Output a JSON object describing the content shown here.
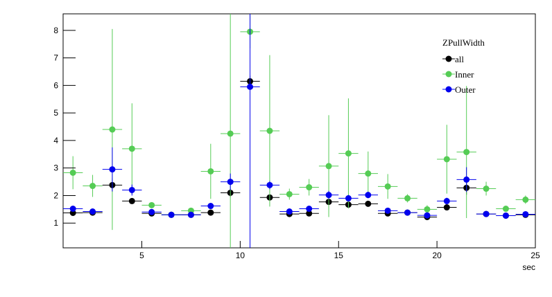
{
  "chart_data": {
    "type": "errorbar",
    "legend_title": "ZPullWidth",
    "x_label": "sec",
    "x": [
      1.5,
      2.5,
      3.5,
      4.5,
      5.5,
      6.5,
      7.5,
      8.5,
      9.5,
      10.5,
      11.5,
      12.5,
      13.5,
      14.5,
      15.5,
      16.5,
      17.5,
      18.5,
      19.5,
      20.5,
      21.5,
      22.5,
      23.5,
      24.5
    ],
    "xerr": 0.5,
    "series": [
      {
        "name": "all",
        "color": "#000000",
        "values": [
          1.37,
          1.38,
          2.38,
          1.8,
          1.35,
          1.3,
          1.3,
          1.38,
          2.1,
          6.15,
          1.93,
          1.33,
          1.35,
          1.77,
          1.67,
          1.7,
          1.35,
          1.38,
          1.22,
          1.57,
          2.28,
          1.33,
          1.27,
          1.3
        ],
        "yerr": [
          0.05,
          0.05,
          0.25,
          0.08,
          0.05,
          0.03,
          0.03,
          0.05,
          0.15,
          0.2,
          0.1,
          0.05,
          0.05,
          0.08,
          0.06,
          0.06,
          0.05,
          0.05,
          0.05,
          0.08,
          0.25,
          0.05,
          0.04,
          0.04
        ]
      },
      {
        "name": "Inner",
        "color": "#55cc55",
        "values": [
          2.83,
          2.35,
          4.4,
          3.7,
          1.65,
          1.3,
          1.45,
          2.88,
          4.25,
          7.95,
          4.35,
          2.05,
          2.3,
          3.07,
          3.53,
          2.8,
          2.33,
          1.9,
          1.5,
          3.32,
          3.58,
          2.25,
          1.52,
          1.85
        ],
        "yerr": [
          0.6,
          0.4,
          3.65,
          1.65,
          0.1,
          0.05,
          0.05,
          1.0,
          5,
          0.6,
          2.75,
          0.2,
          0.3,
          1.85,
          2.0,
          0.8,
          0.45,
          0.15,
          0.15,
          1.25,
          2.4,
          0.25,
          0.1,
          0.15
        ]
      },
      {
        "name": "Outer",
        "color": "#0000ee",
        "values": [
          1.52,
          1.42,
          2.95,
          2.2,
          1.4,
          1.3,
          1.3,
          1.62,
          2.5,
          5.95,
          2.38,
          1.42,
          1.52,
          2.02,
          1.9,
          2.02,
          1.45,
          1.38,
          1.28,
          1.8,
          2.58,
          1.33,
          1.27,
          1.32
        ],
        "yerr": [
          0.06,
          0.05,
          0.8,
          0.2,
          0.06,
          0.04,
          0.04,
          0.1,
          0.3,
          8,
          0.15,
          0.06,
          0.06,
          0.15,
          0.12,
          0.12,
          0.06,
          0.05,
          0.05,
          0.12,
          0.45,
          0.05,
          0.04,
          0.05
        ]
      }
    ],
    "xlim": [
      1,
      25
    ],
    "ylim": [
      0.1,
      8.6
    ],
    "xticks": [
      5,
      10,
      15,
      20,
      25
    ],
    "yticks": [
      1,
      2,
      3,
      4,
      5,
      6,
      7,
      8
    ]
  }
}
